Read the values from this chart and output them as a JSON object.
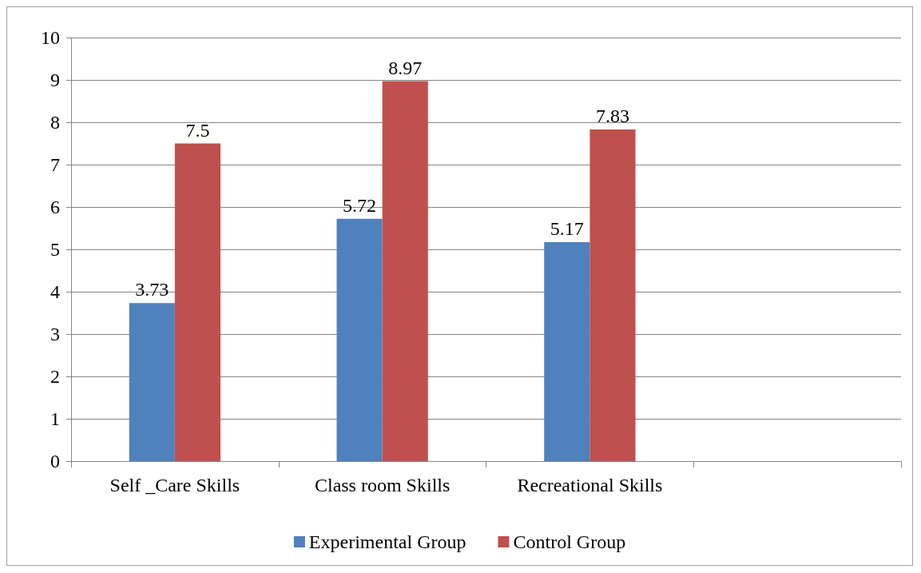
{
  "chart_data": {
    "type": "bar",
    "categories": [
      "Self _Care Skills",
      "Class room Skills",
      "Recreational Skills",
      null
    ],
    "series": [
      {
        "name": "Experimental Group",
        "color": "#4f81bd",
        "values": [
          3.73,
          5.72,
          5.17,
          null
        ]
      },
      {
        "name": "Control Group",
        "color": "#c0504d",
        "values": [
          7.5,
          8.97,
          7.83,
          null
        ]
      }
    ],
    "ylim": [
      0,
      10
    ],
    "yticks": [
      0,
      1,
      2,
      3,
      4,
      5,
      6,
      7,
      8,
      9,
      10
    ],
    "grid": "y",
    "legend": "bottom",
    "data_labels": true
  }
}
